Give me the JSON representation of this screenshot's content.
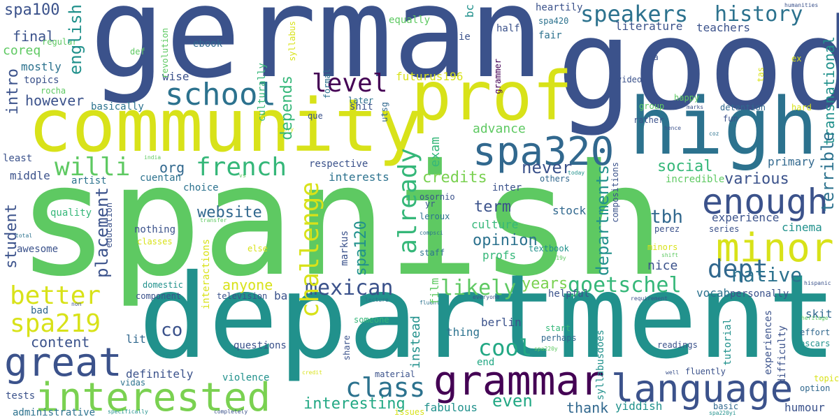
{
  "background": "#ffffff",
  "words": {
    "spanish": {
      "text": "spanish",
      "color": "#5ec962"
    },
    "department": {
      "text": "department",
      "color": "#21918c"
    },
    "german": {
      "text": "german",
      "color": "#3b528b"
    },
    "good": {
      "text": "good",
      "color": "#3b528b"
    },
    "community": {
      "text": "community",
      "color": "#d8e219"
    },
    "high": {
      "text": "high",
      "color": "#2c728e"
    },
    "prof": {
      "text": "prof",
      "color": "#d8e219"
    },
    "grammar": {
      "text": "grammar",
      "color": "#440154"
    },
    "language": {
      "text": "language",
      "color": "#3b528b"
    },
    "interested": {
      "text": "interested",
      "color": "#7ad151"
    },
    "great": {
      "text": "great",
      "color": "#3b528b"
    },
    "spa320": {
      "text": "spa320",
      "color": "#31688e"
    },
    "minor": {
      "text": "minor",
      "color": "#d8e219"
    },
    "enough": {
      "text": "enough",
      "color": "#3b528b"
    },
    "school": {
      "text": "school",
      "color": "#2c728e"
    },
    "speakers": {
      "text": "speakers",
      "color": "#2c728e"
    },
    "history": {
      "text": "history",
      "color": "#2c728e"
    },
    "dept": {
      "text": "dept",
      "color": "#31688e"
    },
    "better": {
      "text": "better",
      "color": "#d8e219"
    },
    "spa219": {
      "text": "spa219",
      "color": "#d8e219"
    },
    "class": {
      "text": "class",
      "color": "#2c728e"
    },
    "mexican": {
      "text": "mexican",
      "color": "#3b528b"
    },
    "french": {
      "text": "french",
      "color": "#35b779"
    },
    "willi": {
      "text": "willi",
      "color": "#5ec962"
    },
    "level": {
      "text": "level",
      "color": "#440154"
    },
    "already": {
      "text": "already",
      "color": "#35b779"
    },
    "challenge": {
      "text": "challenge",
      "color": "#d8e219"
    },
    "goetschel": {
      "text": "goetschel",
      "color": "#35b779"
    },
    "likely": {
      "text": "likely",
      "color": "#5ec962"
    },
    "cool": {
      "text": "cool",
      "color": "#22a884"
    },
    "english": {
      "text": "english",
      "color": "#21918c"
    },
    "native": {
      "text": "native",
      "color": "#2c728e"
    },
    "interesting": {
      "text": "interesting",
      "color": "#22a884"
    },
    "never": {
      "text": "never",
      "color": "#3b528b"
    },
    "credits": {
      "text": "credits",
      "color": "#7ad151"
    },
    "opinion": {
      "text": "opinion",
      "color": "#2c728e"
    },
    "various": {
      "text": "various",
      "color": "#3b528b"
    },
    "social": {
      "text": "social",
      "color": "#35b779"
    },
    "website": {
      "text": "website",
      "color": "#31688e"
    },
    "tbh": {
      "text": "tbh",
      "color": "#31688e"
    },
    "even": {
      "text": "even",
      "color": "#22a884"
    },
    "intro": {
      "text": "intro",
      "color": "#3b528b"
    },
    "content": {
      "text": "content",
      "color": "#3b528b"
    },
    "placement": {
      "text": "placement",
      "color": "#3b528b"
    },
    "years": {
      "text": "years",
      "color": "#7ad151"
    },
    "anyone": {
      "text": "anyone",
      "color": "#d8e219"
    },
    "depends": {
      "text": "depends",
      "color": "#35b779"
    },
    "departments": {
      "text": "departments",
      "color": "#21918c"
    },
    "terrible": {
      "text": "terrible",
      "color": "#2c728e"
    },
    "transnational": {
      "text": "transnational",
      "color": "#21918c"
    },
    "spa120": {
      "text": "spa120",
      "color": "#21918c"
    },
    "co": {
      "text": "co",
      "color": "#3b528b"
    },
    "thank": {
      "text": "thank",
      "color": "#31688e"
    },
    "advance": {
      "text": "advance",
      "color": "#5ec962"
    },
    "instead": {
      "text": "instead",
      "color": "#21918c"
    },
    "term": {
      "text": "term",
      "color": "#3b528b"
    },
    "org": {
      "text": "org",
      "color": "#31688e"
    },
    "however": {
      "text": "however",
      "color": "#3b528b"
    },
    "student": {
      "text": "student",
      "color": "#3b528b"
    },
    "final": {
      "text": "final",
      "color": "#3b528b"
    },
    "spa100": {
      "text": "spa100",
      "color": "#3b528b"
    },
    "coreq": {
      "text": "coreq",
      "color": "#5ec962"
    },
    "literature": {
      "text": "literature",
      "color": "#3b528b"
    },
    "teachers": {
      "text": "teachers",
      "color": "#3b528b"
    },
    "experience": {
      "text": "experience",
      "color": "#3b528b"
    },
    "exam": {
      "text": "exam",
      "color": "#35b779"
    },
    "interests": {
      "text": "interests",
      "color": "#2c728e"
    },
    "culture": {
      "text": "culture",
      "color": "#35b779"
    },
    "profs": {
      "text": "profs",
      "color": "#35b779"
    },
    "stock": {
      "text": "stock",
      "color": "#31688e"
    },
    "primary": {
      "text": "primary",
      "color": "#31688e"
    },
    "nice": {
      "text": "nice",
      "color": "#3b528b"
    },
    "cinema": {
      "text": "cinema",
      "color": "#21918c"
    },
    "vocab": {
      "text": "vocab",
      "color": "#2c728e"
    },
    "skit": {
      "text": "skit",
      "color": "#31688e"
    },
    "berlin": {
      "text": "berlin",
      "color": "#3b528b"
    },
    "thing": {
      "text": "thing",
      "color": "#2c728e"
    },
    "fabulous": {
      "text": "fabulous",
      "color": "#21918c"
    },
    "yiddish": {
      "text": "yiddish",
      "color": "#21918c"
    },
    "humour": {
      "text": "humour",
      "color": "#3b528b"
    },
    "definitely": {
      "text": "definitely",
      "color": "#3b528b"
    },
    "lit": {
      "text": "lit",
      "color": "#31688e"
    },
    "questions": {
      "text": "questions",
      "color": "#3b528b"
    },
    "violence": {
      "text": "violence",
      "color": "#21918c"
    },
    "tests": {
      "text": "tests",
      "color": "#3b528b"
    },
    "administrative": {
      "text": "administrative",
      "color": "#2c728e"
    },
    "bad": {
      "text": "bad",
      "color": "#31688e"
    },
    "mostly": {
      "text": "mostly",
      "color": "#2c728e"
    },
    "topics": {
      "text": "topics",
      "color": "#3b528b"
    },
    "middle": {
      "text": "middle",
      "color": "#3b528b"
    },
    "least": {
      "text": "least",
      "color": "#3b528b"
    },
    "artist": {
      "text": "artist",
      "color": "#2c728e"
    },
    "quality": {
      "text": "quality",
      "color": "#35b779"
    },
    "awesome": {
      "text": "awesome",
      "color": "#3b528b"
    },
    "cuentan": {
      "text": "cuentan",
      "color": "#2c728e"
    },
    "choice": {
      "text": "choice",
      "color": "#2c728e"
    },
    "nothing": {
      "text": "nothing",
      "color": "#3b528b"
    },
    "classes": {
      "text": "classes",
      "color": "#d8e219"
    },
    "wise": {
      "text": "wise",
      "color": "#3b528b"
    },
    "basically": {
      "text": "basically",
      "color": "#2c728e"
    },
    "rocha": {
      "text": "rocha",
      "color": "#5ec962"
    },
    "regular": {
      "text": "regular",
      "color": "#5ec962"
    },
    "culturally": {
      "text": "culturally",
      "color": "#35b779"
    },
    "ebook": {
      "text": "ebook",
      "color": "#31688e"
    },
    "revolution": {
      "text": "revolution",
      "color": "#5ec962"
    },
    "def": {
      "text": "def",
      "color": "#5ec962"
    },
    "syllabus": {
      "text": "syllabus",
      "color": "#d8e219"
    },
    "equally": {
      "text": "equally",
      "color": "#5ec962"
    },
    "bc": {
      "text": "bc",
      "color": "#21918c"
    },
    "ie": {
      "text": "ie",
      "color": "#3b528b"
    },
    "half": {
      "text": "half",
      "color": "#3b528b"
    },
    "heartily": {
      "text": "heartily",
      "color": "#3b528b"
    },
    "spa420": {
      "text": "spa420",
      "color": "#2c728e"
    },
    "fair": {
      "text": "fair",
      "color": "#2c728e"
    },
    "humanities": {
      "text": "humanities",
      "color": "#3b528b"
    },
    "ex": {
      "text": "ex",
      "color": "#d8e219"
    },
    "ana": {
      "text": "ana",
      "color": "#3b528b"
    },
    "tas": {
      "text": "tas",
      "color": "#d8e219"
    },
    "video": {
      "text": "video",
      "color": "#3b528b"
    },
    "grammer": {
      "text": "grammer",
      "color": "#440154"
    },
    "futurus196": {
      "text": "futurus196",
      "color": "#d8e219"
    },
    "formal": {
      "text": "formal",
      "color": "#2c728e"
    },
    "later": {
      "text": "later",
      "color": "#2c728e"
    },
    "shit": {
      "text": "shit",
      "color": "#3b528b"
    },
    "utsg": {
      "text": "utsg",
      "color": "#31688e"
    },
    "que": {
      "text": "que",
      "color": "#3b528b"
    },
    "happy": {
      "text": "happy",
      "color": "#5ec962"
    },
    "group": {
      "text": "group",
      "color": "#5ec962"
    },
    "rather": {
      "text": "rather",
      "color": "#3b528b"
    },
    "marks": {
      "text": "marks",
      "color": "#3b528b"
    },
    "hence": {
      "text": "hence",
      "color": "#3b528b"
    },
    "detention": {
      "text": "detention",
      "color": "#31688e"
    },
    "hard": {
      "text": "hard",
      "color": "#d8e219"
    },
    "fun": {
      "text": "fun",
      "color": "#3b528b"
    },
    "coz": {
      "text": "coz",
      "color": "#2c728e"
    },
    "story": {
      "text": "story",
      "color": "#d8e219"
    },
    "india": {
      "text": "india",
      "color": "#5ec962"
    },
    "vs": {
      "text": "vs",
      "color": "#5ec962"
    },
    "today": {
      "text": "today",
      "color": "#21918c"
    },
    "respective": {
      "text": "respective",
      "color": "#3b528b"
    },
    "others": {
      "text": "others",
      "color": "#31688e"
    },
    "incredible": {
      "text": "incredible",
      "color": "#5ec962"
    },
    "inter": {
      "text": "inter",
      "color": "#3b528b"
    },
    "yr": {
      "text": "yr",
      "color": "#3b528b"
    },
    "osornio": {
      "text": "osornio",
      "color": "#3b528b"
    },
    "leroux": {
      "text": "leroux",
      "color": "#2c728e"
    },
    "compsci": {
      "text": "compsci",
      "color": "#2c728e"
    },
    "transfer": {
      "text": "transfer",
      "color": "#5ec962"
    },
    "compositions": {
      "text": "compositions",
      "color": "#3b528b"
    },
    "education": {
      "text": "education",
      "color": "#3b528b"
    },
    "total": {
      "text": "total",
      "color": "#2c728e"
    },
    "perez": {
      "text": "perez",
      "color": "#3b528b"
    },
    "series": {
      "text": "series",
      "color": "#3b528b"
    },
    "interactions": {
      "text": "interactions",
      "color": "#d8e219"
    },
    "staff": {
      "text": "staff",
      "color": "#2c728e"
    },
    "markus": {
      "text": "markus",
      "color": "#3b528b"
    },
    "else": {
      "text": "else",
      "color": "#d8e219"
    },
    "film": {
      "text": "film",
      "color": "#5ec962"
    },
    "textbook": {
      "text": "textbook",
      "color": "#21918c"
    },
    "spa219y": {
      "text": "spa219y",
      "color": "#5ec962"
    },
    "minors": {
      "text": "minors",
      "color": "#d8e219"
    },
    "shift": {
      "text": "shift",
      "color": "#5ec962"
    },
    "domestic": {
      "text": "domestic",
      "color": "#21918c"
    },
    "component": {
      "text": "component",
      "color": "#3b528b"
    },
    "television": {
      "text": "television",
      "color": "#3b528b"
    },
    "ba": {
      "text": "ba",
      "color": "#3b528b"
    },
    "helpful": {
      "text": "helpful",
      "color": "#3b528b"
    },
    "personally": {
      "text": "personally",
      "color": "#3b528b"
    },
    "hispanic": {
      "text": "hispanic",
      "color": "#3b528b"
    },
    "requirement": {
      "text": "requirement",
      "color": "#3b528b"
    },
    "heritage": {
      "text": "heritage",
      "color": "#5ec962"
    },
    "lecture": {
      "text": "lecture",
      "color": "#2c728e"
    },
    "non": {
      "text": "non",
      "color": "#3b528b"
    },
    "fluent": {
      "text": "fluent",
      "color": "#2c728e"
    },
    "everyone": {
      "text": "everyone",
      "color": "#3b528b"
    },
    "someone": {
      "text": "someone",
      "color": "#35b779"
    },
    "share": {
      "text": "share",
      "color": "#3b528b"
    },
    "start": {
      "text": "start",
      "color": "#35b779"
    },
    "perhaps": {
      "text": "perhaps",
      "color": "#31688e"
    },
    "end": {
      "text": "end",
      "color": "#22a884"
    },
    "spa220y": {
      "text": "spa220y",
      "color": "#5ec962"
    },
    "syllabusdoes": {
      "text": "syllabusdoes",
      "color": "#21918c"
    },
    "tutorial": {
      "text": "tutorial",
      "color": "#21918c"
    },
    "experiences": {
      "text": "experiences",
      "color": "#3b528b"
    },
    "difficulty": {
      "text": "difficulty",
      "color": "#3b528b"
    },
    "effort": {
      "text": "effort",
      "color": "#31688e"
    },
    "oscars": {
      "text": "oscars",
      "color": "#21918c"
    },
    "readings": {
      "text": "readings",
      "color": "#3b528b"
    },
    "well": {
      "text": "well",
      "color": "#3b528b"
    },
    "fluently": {
      "text": "fluently",
      "color": "#3b528b"
    },
    "topic": {
      "text": "topic",
      "color": "#d8e219"
    },
    "option": {
      "text": "option",
      "color": "#31688e"
    },
    "basic": {
      "text": "basic",
      "color": "#31688e"
    },
    "spa220yi": {
      "text": "spa220yi",
      "color": "#21918c"
    },
    "vidas": {
      "text": "vidas",
      "color": "#2c728e"
    },
    "credit": {
      "text": "credit",
      "color": "#d8e219"
    },
    "material": {
      "text": "material",
      "color": "#3b528b"
    },
    "issues": {
      "text": "issues",
      "color": "#d8e219"
    },
    "specifically": {
      "text": "specifically",
      "color": "#21918c"
    },
    "completely": {
      "text": "completely",
      "color": "#3b528b"
    }
  }
}
